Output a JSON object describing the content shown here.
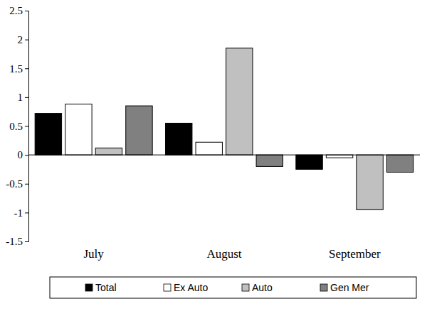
{
  "chart_data": {
    "type": "bar",
    "categories": [
      "July",
      "August",
      "September"
    ],
    "series": [
      {
        "name": "Total",
        "color": "#000000",
        "values": [
          0.72,
          0.55,
          -0.25
        ]
      },
      {
        "name": "Ex Auto",
        "color": "#ffffff",
        "values": [
          0.88,
          0.22,
          -0.05
        ]
      },
      {
        "name": "Auto",
        "color": "#c0c0c0",
        "values": [
          0.12,
          1.85,
          -0.95
        ]
      },
      {
        "name": "Gen Mer",
        "color": "#808080",
        "values": [
          0.85,
          -0.2,
          -0.3
        ]
      }
    ],
    "ylim": [
      -1.5,
      2.5
    ],
    "yticks": [
      -1.5,
      -1,
      -0.5,
      0,
      0.5,
      1,
      1.5,
      2,
      2.5
    ],
    "grid": false,
    "legend": "bottom"
  }
}
